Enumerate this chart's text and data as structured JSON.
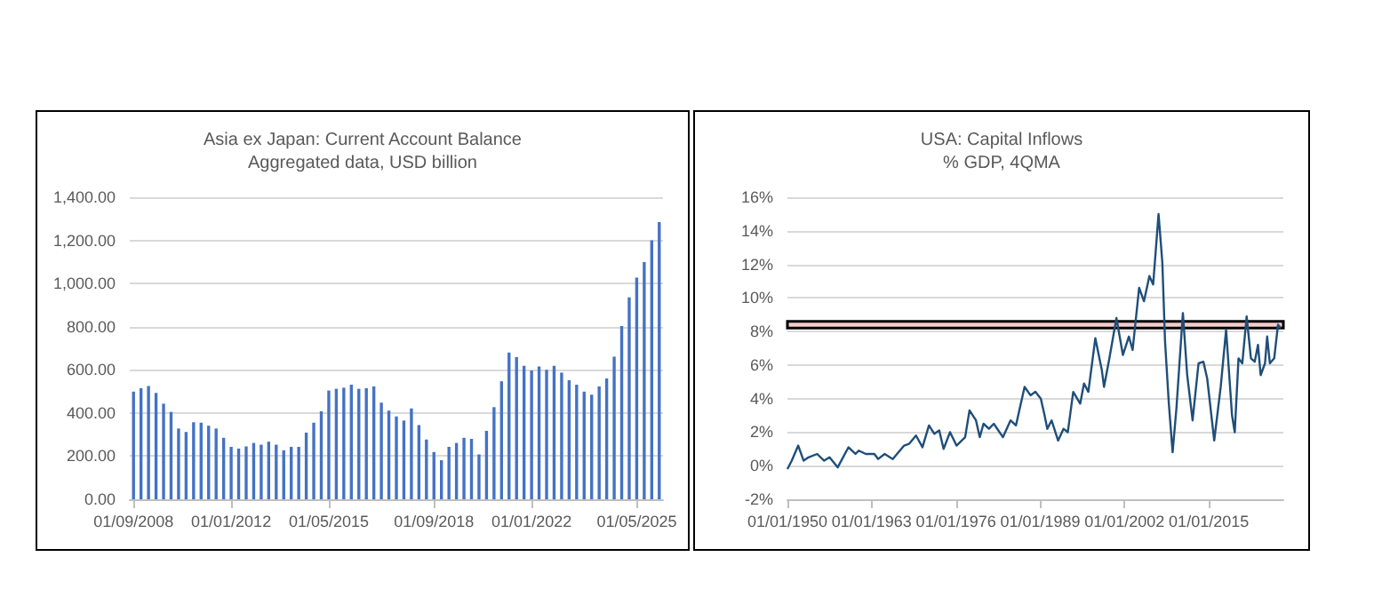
{
  "chart_data": [
    {
      "type": "bar",
      "title": "Asia ex Japan: Current Account Balance",
      "subtitle": "Aggregated data, USD billion",
      "categories": [
        "01/09/2008",
        null,
        null,
        null,
        null,
        null,
        null,
        null,
        null,
        null,
        null,
        null,
        null,
        "01/01/2012",
        null,
        null,
        null,
        null,
        null,
        null,
        null,
        null,
        null,
        null,
        null,
        null,
        "01/05/2015",
        null,
        null,
        null,
        null,
        null,
        null,
        null,
        null,
        null,
        null,
        null,
        null,
        null,
        "01/09/2018",
        null,
        null,
        null,
        null,
        null,
        null,
        null,
        null,
        null,
        null,
        null,
        null,
        "01/01/2022",
        null,
        null,
        null,
        null,
        null,
        null,
        null,
        null,
        null,
        null,
        null,
        null,
        null,
        "01/05/2025",
        null,
        null,
        null
      ],
      "series": [
        {
          "color": "#4472c4",
          "values": [
            499,
            515,
            525,
            493,
            443,
            405,
            328,
            312,
            357,
            355,
            341,
            328,
            285,
            243,
            235,
            245,
            261,
            253,
            267,
            253,
            227,
            243,
            243,
            309,
            355,
            408,
            504,
            512,
            517,
            531,
            512,
            515,
            523,
            448,
            411,
            384,
            365,
            421,
            344,
            277,
            219,
            181,
            243,
            261,
            285,
            280,
            208,
            317,
            427,
            547,
            680,
            659,
            619,
            597,
            616,
            600,
            619,
            587,
            552,
            531,
            499,
            485,
            523,
            560,
            661,
            803,
            936,
            1027,
            1099,
            1200,
            1285
          ]
        }
      ],
      "ylim": [
        0,
        1400
      ],
      "yticks": [
        {
          "value": 0,
          "label": "0.00"
        },
        {
          "value": 200,
          "label": "200.00"
        },
        {
          "value": 400,
          "label": "400.00"
        },
        {
          "value": 600,
          "label": "600.00"
        },
        {
          "value": 800,
          "label": "800.00"
        },
        {
          "value": 1000,
          "label": "1,000.00"
        },
        {
          "value": 1200,
          "label": "1,200.00"
        },
        {
          "value": 1400,
          "label": "1,400.00"
        }
      ],
      "grid": "y"
    },
    {
      "type": "line",
      "title": "USA: Capital Inflows",
      "subtitle": "% GDP, 4QMA",
      "series": [
        {
          "color": "#1f4e79",
          "x": [
            "1950-01",
            "1950-09",
            "1951-09",
            "1952-07",
            "1953-04",
            "1954-08",
            "1955-09",
            "1956-07",
            "1957-10",
            "1959-06",
            "1960-07",
            "1961-01",
            "1962-02",
            "1963-06",
            "1964-01",
            "1965-01",
            "1966-04",
            "1968-01",
            "1968-10",
            "1969-11",
            "1970-11",
            "1971-11",
            "1972-09",
            "1973-06",
            "1974-02",
            "1975-02",
            "1976-02",
            "1977-06",
            "1978-02",
            "1979-02",
            "1979-09",
            "1980-04",
            "1981-02",
            "1981-11",
            "1983-04",
            "1984-06",
            "1985-04",
            "1986-08",
            "1987-07",
            "1988-04",
            "1989-02",
            "1989-09",
            "1990-02",
            "1990-10",
            "1991-10",
            "1992-08",
            "1993-04",
            "1994-02",
            "1995-03",
            "1995-10",
            "1996-06",
            "1997-07",
            "1998-07",
            "1998-11",
            "1999-09",
            "2000-10",
            "2001-10",
            "2002-09",
            "2003-04",
            "2004-04",
            "2005-01",
            "2005-11",
            "2006-06",
            "2007-04",
            "2007-11",
            "2008-04",
            "2008-11",
            "2009-06",
            "2010-01",
            "2011-01",
            "2011-09",
            "2012-07",
            "2013-06",
            "2014-03",
            "2014-10",
            "2015-11",
            "2016-11",
            "2017-09",
            "2018-08",
            "2019-01",
            "2019-08",
            "2020-03",
            "2020-11",
            "2021-07",
            "2022-02",
            "2022-08",
            "2023-01",
            "2023-09",
            "2024-01",
            "2024-06",
            "2025-02",
            "2025-09",
            "2026-02"
          ],
          "values": [
            -0.2,
            0.3,
            1.2,
            0.3,
            0.5,
            0.7,
            0.3,
            0.5,
            -0.1,
            1.1,
            0.7,
            0.9,
            0.7,
            0.7,
            0.4,
            0.7,
            0.4,
            1.2,
            1.3,
            1.8,
            1.1,
            2.4,
            1.9,
            2.1,
            1.0,
            2.0,
            1.2,
            1.7,
            3.3,
            2.7,
            1.7,
            2.5,
            2.2,
            2.5,
            1.7,
            2.7,
            2.4,
            4.7,
            4.2,
            4.4,
            4.0,
            3.0,
            2.2,
            2.7,
            1.5,
            2.2,
            2.0,
            4.4,
            3.7,
            4.9,
            4.4,
            7.6,
            5.7,
            4.7,
            6.4,
            8.8,
            6.6,
            7.7,
            6.9,
            10.6,
            9.8,
            11.3,
            10.8,
            15.0,
            12.1,
            7.4,
            3.7,
            0.8,
            3.4,
            9.1,
            5.4,
            2.7,
            6.1,
            6.2,
            5.2,
            1.5,
            4.7,
            8.1,
            3.0,
            2.0,
            6.4,
            6.1,
            8.9,
            6.4,
            6.2,
            7.2,
            5.4,
            6.1,
            7.7,
            6.1,
            6.4,
            8.4,
            8.2
          ]
        }
      ],
      "xlim": [
        "1950-01-01",
        "2026-07-01"
      ],
      "xticks": [
        {
          "value": "1950-01-01",
          "label": "01/01/1950"
        },
        {
          "value": "1963-01-01",
          "label": "01/01/1963"
        },
        {
          "value": "1976-01-01",
          "label": "01/01/1976"
        },
        {
          "value": "1989-01-01",
          "label": "01/01/1989"
        },
        {
          "value": "2002-01-01",
          "label": "01/01/2002"
        },
        {
          "value": "2015-01-01",
          "label": "01/01/2015"
        }
      ],
      "ylim": [
        -2,
        16
      ],
      "yticks": [
        {
          "value": -2,
          "label": "-2%"
        },
        {
          "value": 0,
          "label": "0%"
        },
        {
          "value": 2,
          "label": "2%"
        },
        {
          "value": 4,
          "label": "4%"
        },
        {
          "value": 6,
          "label": "6%"
        },
        {
          "value": 8,
          "label": "8%"
        },
        {
          "value": 10,
          "label": "10%"
        },
        {
          "value": 12,
          "label": "12%"
        },
        {
          "value": 14,
          "label": "14%"
        },
        {
          "value": 16,
          "label": "16%"
        }
      ],
      "bands": [
        {
          "axis": "y",
          "from": 8.2,
          "to": 8.6,
          "color": "#f4cccc"
        }
      ],
      "grid": "y"
    }
  ]
}
